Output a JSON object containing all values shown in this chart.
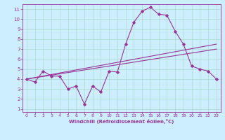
{
  "title": "",
  "xlabel": "Windchill (Refroidissement éolien,°C)",
  "ylabel": "",
  "bg_color": "#cceeff",
  "line_color": "#993399",
  "grid_color": "#aaddcc",
  "xlim": [
    -0.5,
    23.5
  ],
  "ylim": [
    0.7,
    11.5
  ],
  "xticks": [
    0,
    1,
    2,
    3,
    4,
    5,
    6,
    7,
    8,
    9,
    10,
    11,
    12,
    13,
    14,
    15,
    16,
    17,
    18,
    19,
    20,
    21,
    22,
    23
  ],
  "yticks": [
    1,
    2,
    3,
    4,
    5,
    6,
    7,
    8,
    9,
    10,
    11
  ],
  "line1_x": [
    0,
    1,
    2,
    3,
    4,
    5,
    6,
    7,
    8,
    9,
    10,
    11,
    12,
    13,
    14,
    15,
    16,
    17,
    18,
    19,
    20,
    21,
    22,
    23
  ],
  "line1_y": [
    4.0,
    3.7,
    4.8,
    4.3,
    4.3,
    3.0,
    3.3,
    1.5,
    3.3,
    2.7,
    4.8,
    4.7,
    7.5,
    9.7,
    10.8,
    11.2,
    10.5,
    10.4,
    8.8,
    7.5,
    5.3,
    5.0,
    4.8,
    4.0
  ],
  "line2_x": [
    0,
    23
  ],
  "line2_y": [
    4.0,
    7.5
  ],
  "line3_x": [
    0,
    23
  ],
  "line3_y": [
    4.0,
    7.0
  ],
  "tick_fontsize": 4.5,
  "xlabel_fontsize": 5.0,
  "marker_size": 1.8,
  "line_width": 0.8
}
